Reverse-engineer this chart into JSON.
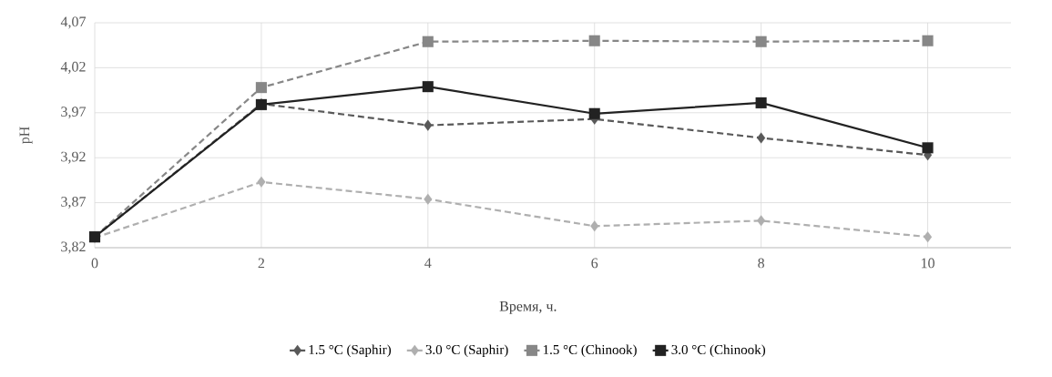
{
  "chart_data": {
    "type": "line",
    "xlabel": "Время, ч.",
    "ylabel": "pH",
    "x": [
      0,
      2,
      4,
      6,
      8,
      10
    ],
    "series": [
      {
        "name": "1.5 °C (Saphir)",
        "color": "#595959",
        "marker": "diamond",
        "line_style": "dashed",
        "values": [
          3.832,
          3.98,
          3.956,
          3.963,
          3.942,
          3.923
        ]
      },
      {
        "name": "3.0 °C (Saphir)",
        "color": "#afafaf",
        "marker": "diamond",
        "line_style": "dashed",
        "values": [
          3.831,
          3.893,
          3.874,
          3.844,
          3.85,
          3.832
        ]
      },
      {
        "name": "1.5 °C (Chinook)",
        "color": "#878787",
        "marker": "square",
        "line_style": "dashed",
        "values": [
          3.832,
          3.998,
          4.049,
          4.05,
          4.049,
          4.05
        ]
      },
      {
        "name": "3.0 °C (Chinook)",
        "color": "#222222",
        "marker": "square",
        "line_style": "solid",
        "values": [
          3.832,
          3.979,
          3.999,
          3.969,
          3.981,
          3.931
        ]
      }
    ],
    "xlim": [
      0,
      11
    ],
    "xticks": [
      0,
      2,
      4,
      6,
      8,
      10
    ],
    "ylim": [
      3.82,
      4.07
    ],
    "yticks": [
      {
        "value": 3.82,
        "label": "3,82"
      },
      {
        "value": 3.87,
        "label": "3,87"
      },
      {
        "value": 3.92,
        "label": "3,92"
      },
      {
        "value": 3.97,
        "label": "3,97"
      },
      {
        "value": 4.02,
        "label": "4,02"
      },
      {
        "value": 4.07,
        "label": "4,07"
      }
    ],
    "grid": true,
    "legend": "bottom"
  }
}
